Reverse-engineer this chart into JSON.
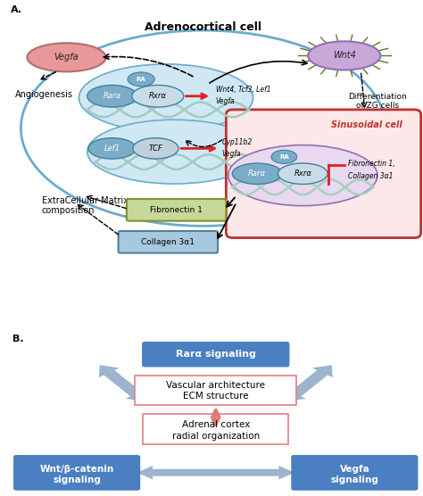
{
  "bg_color": "#ffffff",
  "panel_a_label": "A.",
  "panel_b_label": "B.",
  "adrenocortical_label": "Adrenocortical cell",
  "sinusoidal_label": "Sinusoidal cell",
  "angiogenesis_label": "Angiogenesis",
  "differentiation_label": "Differentiation\nof ZG cells",
  "ecm_label": "ExtraCellular Matrix\ncomposition",
  "vegfa_label": "Vegfa",
  "wnt4_label": "Wnt4",
  "rara_label": "Rarα",
  "rxra_label": "Rxrα",
  "ra_label": "RA",
  "lef1_label": "Lef1",
  "tcf_label": "TCF",
  "fibronectin_label": "Fibronectin 1",
  "collagen_label": "Collagen 3α1",
  "fibronectin_sinusoidal_label": "Fibronectin 1,\nCollagen 3α1",
  "rara_signaling_label": "Rarα signaling",
  "vascular_line1": "Vascular architecture",
  "vascular_line2": "ECM structure",
  "adrenal_line1": "Adrenal cortex",
  "adrenal_line2": "radial organization",
  "wnt_label": "Wnt/β-catenin\nsignaling",
  "vegfa_signal_label": "Vegfa\nsignaling",
  "blue_box_color": "#4a7fc1",
  "blue_box_text_color": "#ffffff",
  "adrenocortical_ellipse_color": "#6aaccc",
  "sinusoidal_box_color": "#c03030",
  "vegfa_oval_color": "#e89898",
  "wnt4_oval_color": "#c8a8d8",
  "rara_oval_color": "#7aacc8",
  "rxra_oval_color": "#c8dce8",
  "ra_oval_color": "#7aacc8",
  "lef1_oval_color": "#7aacc8",
  "tcf_oval_color": "#c0d0dc",
  "fibronectin_box_color": "#c8d898",
  "collagen_box_color": "#a8c8e0",
  "dna_color": "#a0ccc0",
  "red_arrow_color": "#dd2020",
  "pink_arrow_color": "#e07878",
  "gray_arrow_color": "#9cb4cc",
  "sinusoidal_inner_color": "#e8d8f0",
  "adrenocortical_inner_color": "#d0e8f4",
  "wnt4_spike_color": "#5a7830"
}
